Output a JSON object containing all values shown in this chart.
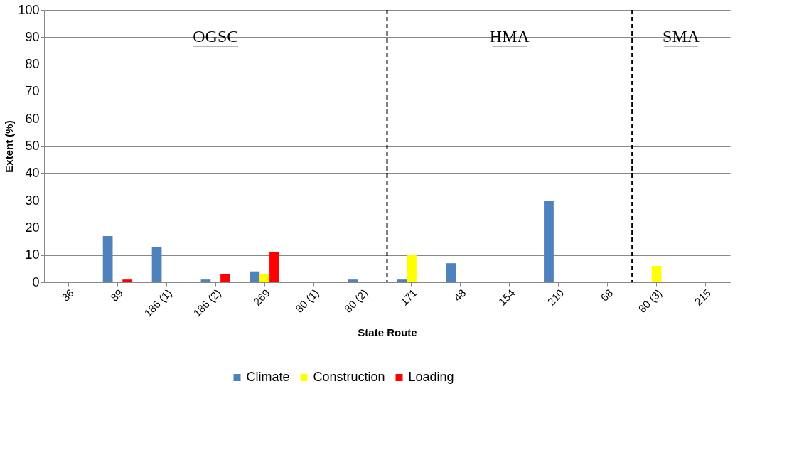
{
  "chart_data": {
    "type": "bar",
    "xlabel": "State Route",
    "ylabel": "Extent (%)",
    "categories": [
      "36",
      "89",
      "186 (1)",
      "186 (2)",
      "269",
      "80 (1)",
      "80 (2)",
      "171",
      "48",
      "154",
      "210",
      "68",
      "80 (3)",
      "215"
    ],
    "series": [
      {
        "name": "Climate",
        "color": "#4f81bd",
        "values": [
          0,
          17,
          13,
          1,
          4,
          0,
          1,
          1,
          7,
          0,
          30,
          0,
          0,
          0
        ]
      },
      {
        "name": "Construction",
        "color": "#ffff00",
        "values": [
          0,
          0,
          0,
          0,
          3,
          0,
          0,
          10,
          0,
          0,
          0,
          0,
          6,
          0
        ]
      },
      {
        "name": "Loading",
        "color": "#ff0000",
        "values": [
          0,
          1,
          0,
          3,
          11,
          0,
          0,
          0,
          0,
          0,
          0,
          0,
          0,
          0
        ]
      }
    ],
    "ylim": [
      0,
      100
    ],
    "yticks": [
      0,
      10,
      20,
      30,
      40,
      50,
      60,
      70,
      80,
      90,
      100
    ],
    "grid": "y",
    "legend": "bottom",
    "annotations": [
      "OGSC",
      "HMA",
      "SMA"
    ]
  }
}
